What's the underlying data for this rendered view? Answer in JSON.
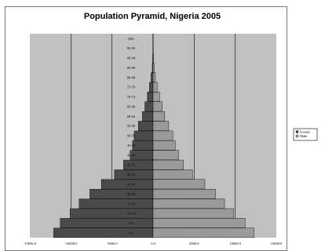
{
  "chart_data": {
    "type": "bar",
    "title": "Population Pyramid, Nigeria 2005",
    "orientation": "horizontal",
    "categories": [
      "0-4",
      "5-9",
      "10-14",
      "15-19",
      "20-24",
      "25-29",
      "30-34",
      "35-39",
      "40-44",
      "45-49",
      "50-54",
      "55-59",
      "60-64",
      "65-69",
      "70-74",
      "75-79",
      "80-84",
      "85-89",
      "90-94",
      "95-99",
      "100+"
    ],
    "series": [
      {
        "name": "Female",
        "values": [
          -12100,
          -11300,
          -10100,
          -9000,
          -7700,
          -6300,
          -4700,
          -3600,
          -2800,
          -2500,
          -2300,
          -1800,
          -1300,
          -1000,
          -700,
          -450,
          -250,
          -100,
          -50,
          -20,
          -10
        ],
        "color": "#4a4a4a"
      },
      {
        "name": "Male",
        "values": [
          12300,
          11200,
          9800,
          8700,
          7600,
          6300,
          4800,
          3700,
          3100,
          2700,
          2400,
          1900,
          1400,
          1100,
          800,
          500,
          280,
          120,
          60,
          25,
          10
        ],
        "color": "#9a9a9a"
      }
    ],
    "xlim": [
      -15000,
      15000
    ],
    "xticks": [
      -15000,
      -10000,
      -5000,
      0,
      5000,
      10000,
      15000
    ],
    "xtick_labels": [
      "-15000.0",
      "-10000.0",
      "-5000.0",
      "0.0",
      "5000.0",
      "10000.0",
      "15000.0"
    ],
    "gridlines": [
      -10000,
      -5000,
      0,
      5000,
      10000
    ],
    "plot_background": "#c0c0c0",
    "grid": true,
    "legend": {
      "placement": "right",
      "entries": [
        "Female",
        "Male"
      ]
    }
  }
}
